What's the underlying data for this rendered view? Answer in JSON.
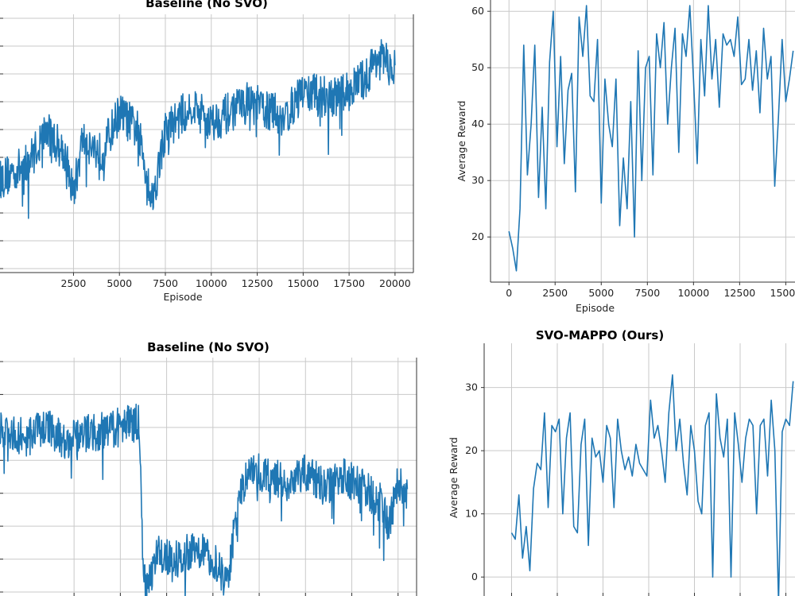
{
  "chart_data": [
    {
      "type": "line",
      "title": "Baseline (No SVO)",
      "xlabel": "Episode",
      "ylabel": "",
      "xlim": [
        -1500,
        21000
      ],
      "ylim": [
        null,
        null
      ],
      "x_ticks": [
        "2500",
        "5000",
        "7500",
        "10000",
        "12500",
        "15000",
        "17500",
        "20000"
      ],
      "y_ticks": [],
      "grid": true,
      "color": "#1f77b4",
      "series": [
        {
          "x_step": 20,
          "x_start": -1500,
          "points": [
            [
              -1500,
              0.36
            ],
            [
              0,
              0.42
            ],
            [
              1000,
              0.55
            ],
            [
              2000,
              0.47
            ],
            [
              2500,
              0.3
            ],
            [
              3000,
              0.52
            ],
            [
              4000,
              0.46
            ],
            [
              5000,
              0.62
            ],
            [
              6000,
              0.55
            ],
            [
              6800,
              0.28
            ],
            [
              7500,
              0.55
            ],
            [
              9000,
              0.65
            ],
            [
              10000,
              0.58
            ],
            [
              12000,
              0.66
            ],
            [
              14000,
              0.6
            ],
            [
              15000,
              0.7
            ],
            [
              17000,
              0.68
            ],
            [
              18500,
              0.76
            ],
            [
              19000,
              0.84
            ],
            [
              20000,
              0.78
            ]
          ]
        }
      ]
    },
    {
      "type": "line",
      "title": "",
      "xlabel": "Episode",
      "ylabel": "Average Reward",
      "xlim": [
        -1000,
        15500
      ],
      "ylim": [
        12,
        62
      ],
      "x_ticks": [
        "0",
        "2500",
        "5000",
        "7500",
        "10000",
        "12500",
        "15000"
      ],
      "y_ticks": [
        "20",
        "30",
        "40",
        "50",
        "60"
      ],
      "grid": true,
      "color": "#1f77b4",
      "series": [
        {
          "x": [
            0,
            200,
            400,
            600,
            800,
            1000,
            1200,
            1400,
            1600,
            1800,
            2000,
            2200,
            2400,
            2600,
            2800,
            3000,
            3200,
            3400,
            3600,
            3800,
            4000,
            4200,
            4400,
            4600,
            4800,
            5000,
            5200,
            5400,
            5600,
            5800,
            6000,
            6200,
            6400,
            6600,
            6800,
            7000,
            7200,
            7400,
            7600,
            7800,
            8000,
            8200,
            8400,
            8600,
            8800,
            9000,
            9200,
            9400,
            9600,
            9800,
            10000,
            10200,
            10400,
            10600,
            10800,
            11000,
            11200,
            11400,
            11600,
            11800,
            12000,
            12200,
            12400,
            12600,
            12800,
            13000,
            13200,
            13400,
            13600,
            13800,
            14000,
            14200,
            14400,
            14600,
            14800,
            15000,
            15200,
            15400
          ],
          "y": [
            21,
            18,
            14,
            25,
            54,
            31,
            40,
            54,
            27,
            43,
            25,
            51,
            60,
            36,
            52,
            33,
            46,
            49,
            28,
            59,
            52,
            61,
            45,
            44,
            55,
            26,
            48,
            40,
            36,
            48,
            22,
            34,
            25,
            44,
            20,
            53,
            30,
            50,
            52,
            31,
            56,
            50,
            58,
            40,
            50,
            57,
            35,
            56,
            52,
            61,
            48,
            33,
            55,
            45,
            61,
            48,
            55,
            43,
            56,
            54,
            55,
            52,
            59,
            47,
            48,
            55,
            46,
            53,
            42,
            57,
            48,
            52,
            29,
            41,
            55,
            44,
            48,
            53
          ]
        }
      ]
    },
    {
      "type": "line",
      "title": "Baseline (No SVO)",
      "xlabel": "",
      "ylabel": "",
      "xlim": [
        -1500,
        21000
      ],
      "ylim": [
        null,
        null
      ],
      "x_ticks": [],
      "y_ticks": [],
      "grid": true,
      "color": "#1f77b4",
      "series": [
        {
          "points": [
            [
              -1500,
              0.7
            ],
            [
              0,
              0.66
            ],
            [
              1000,
              0.72
            ],
            [
              2000,
              0.64
            ],
            [
              3000,
              0.68
            ],
            [
              4500,
              0.7
            ],
            [
              6000,
              0.74
            ],
            [
              6200,
              0.2
            ],
            [
              6400,
              0.02
            ],
            [
              7000,
              0.18
            ],
            [
              8000,
              0.15
            ],
            [
              9000,
              0.2
            ],
            [
              10000,
              0.16
            ],
            [
              10500,
              0.08
            ],
            [
              10800,
              0.04
            ],
            [
              11000,
              0.2
            ],
            [
              11500,
              0.44
            ],
            [
              12000,
              0.54
            ],
            [
              13000,
              0.5
            ],
            [
              14000,
              0.48
            ],
            [
              15000,
              0.52
            ],
            [
              16000,
              0.46
            ],
            [
              17000,
              0.5
            ],
            [
              18000,
              0.46
            ],
            [
              19000,
              0.4
            ],
            [
              19500,
              0.3
            ],
            [
              20000,
              0.48
            ],
            [
              20500,
              0.44
            ]
          ]
        }
      ]
    },
    {
      "type": "line",
      "title": "SVO-MAPPO (Ours)",
      "xlabel": "",
      "ylabel": "Average Reward",
      "xlim": [
        -1500,
        15500
      ],
      "ylim": [
        -3,
        37
      ],
      "x_ticks": [],
      "y_ticks": [
        "0",
        "10",
        "20",
        "30"
      ],
      "grid": true,
      "color": "#1f77b4",
      "series": [
        {
          "x": [
            0,
            200,
            400,
            600,
            800,
            1000,
            1200,
            1400,
            1600,
            1800,
            2000,
            2200,
            2400,
            2600,
            2800,
            3000,
            3200,
            3400,
            3600,
            3800,
            4000,
            4200,
            4400,
            4600,
            4800,
            5000,
            5200,
            5400,
            5600,
            5800,
            6000,
            6200,
            6400,
            6600,
            6800,
            7000,
            7200,
            7400,
            7600,
            7800,
            8000,
            8200,
            8400,
            8600,
            8800,
            9000,
            9200,
            9400,
            9600,
            9800,
            10000,
            10200,
            10400,
            10600,
            10800,
            11000,
            11200,
            11400,
            11600,
            11800,
            12000,
            12200,
            12400,
            12600,
            12800,
            13000,
            13200,
            13400,
            13600,
            13800,
            14000,
            14200,
            14400,
            14600,
            14800,
            15000,
            15200,
            15400
          ],
          "y": [
            7,
            6,
            13,
            3,
            8,
            1,
            14,
            18,
            17,
            26,
            11,
            24,
            23,
            25,
            10,
            22,
            26,
            8,
            7,
            21,
            25,
            5,
            22,
            19,
            20,
            15,
            24,
            22,
            11,
            25,
            20,
            17,
            19,
            16,
            21,
            18,
            17,
            16,
            28,
            22,
            24,
            20,
            15,
            26,
            32,
            20,
            25,
            18,
            13,
            24,
            20,
            12,
            10,
            24,
            26,
            0,
            29,
            22,
            19,
            25,
            0,
            26,
            21,
            15,
            22,
            25,
            24,
            10,
            24,
            25,
            16,
            28,
            20,
            -4,
            23,
            25,
            24,
            31
          ]
        }
      ]
    }
  ]
}
